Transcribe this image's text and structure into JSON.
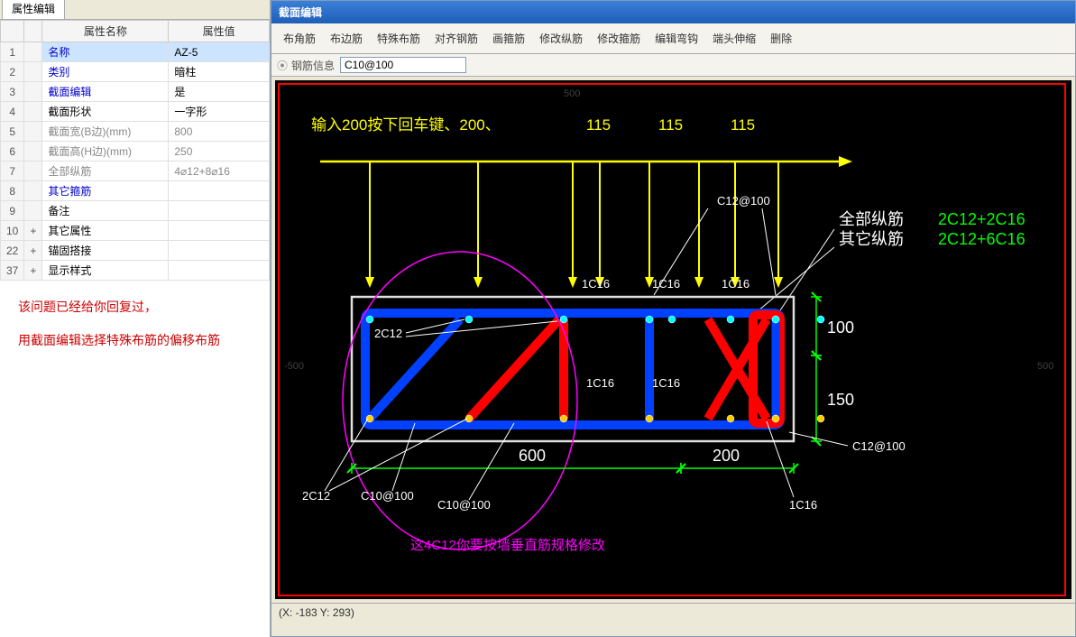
{
  "left": {
    "tab_label": "属性编辑",
    "header_name": "属性名称",
    "header_value": "属性值",
    "rows": [
      {
        "num": "1",
        "exp": "",
        "name": "名称",
        "val": "AZ-5",
        "blue": true,
        "hl": true
      },
      {
        "num": "2",
        "exp": "",
        "name": "类别",
        "val": "暗柱",
        "blue": true
      },
      {
        "num": "3",
        "exp": "",
        "name": "截面编辑",
        "val": "是",
        "blue": true
      },
      {
        "num": "4",
        "exp": "",
        "name": "截面形状",
        "val": "一字形"
      },
      {
        "num": "5",
        "exp": "",
        "name": "截面宽(B边)(mm)",
        "val": "800",
        "gray": true
      },
      {
        "num": "6",
        "exp": "",
        "name": "截面高(H边)(mm)",
        "val": "250",
        "gray": true
      },
      {
        "num": "7",
        "exp": "",
        "name": "全部纵筋",
        "val": "4⌀12+8⌀16",
        "gray": true
      },
      {
        "num": "8",
        "exp": "",
        "name": "其它箍筋",
        "val": "",
        "blue": true
      },
      {
        "num": "9",
        "exp": "",
        "name": "备注",
        "val": ""
      },
      {
        "num": "10",
        "exp": "+",
        "name": "其它属性",
        "val": ""
      },
      {
        "num": "22",
        "exp": "+",
        "name": "锚固搭接",
        "val": ""
      },
      {
        "num": "37",
        "exp": "+",
        "name": "显示样式",
        "val": ""
      }
    ],
    "note1": "该问题已经给你回复过，",
    "note2": "用截面编辑选择特殊布筋的偏移布筋"
  },
  "editor": {
    "title": "截面编辑",
    "tools": [
      "布角筋",
      "布边筋",
      "特殊布筋",
      "对齐钢筋",
      "画箍筋",
      "修改纵筋",
      "修改箍筋",
      "编辑弯钩",
      "端头伸缩",
      "删除"
    ],
    "info_label": "钢筋信息",
    "info_value": "C10@100",
    "status": "(X: -183 Y: 293)",
    "colors": {
      "rect_border": "#e0e0e0",
      "bg": "#000000",
      "tick": "#00ff00",
      "tick_txt": "#ffffff",
      "arrow": "#ffff00",
      "blue": "#0040ff",
      "red": "#ff0000",
      "magenta": "#ff00ff",
      "cyan": "#00ffff",
      "green": "#00ff00",
      "white": "#ffffff"
    },
    "top_hint": "输入200按下回车键、200、",
    "top_dims": [
      "115",
      "115",
      "115"
    ],
    "rebar_top": [
      "1C16",
      "1C16",
      "1C16"
    ],
    "rebar_mid": [
      "1C16",
      "1C16"
    ],
    "label_2c12": "2C12",
    "stirrup_c12": "C12@100",
    "c10_lbl": "C10@100",
    "bottom_2c12": "2C12",
    "bottom_1c16": "1C16",
    "dim_600": "600",
    "dim_200": "200",
    "dim_100": "100",
    "dim_150": "150",
    "right_lbl1": "全部纵筋",
    "right_val1": "2C12+2C16",
    "right_lbl2": "其它纵筋",
    "right_val2": "2C12+6C16",
    "magenta_note": "这4C12你要按墙垂直筋规格修改",
    "grid_500_t": "500",
    "grid_500_l": "-500",
    "grid_500_r": "500"
  }
}
